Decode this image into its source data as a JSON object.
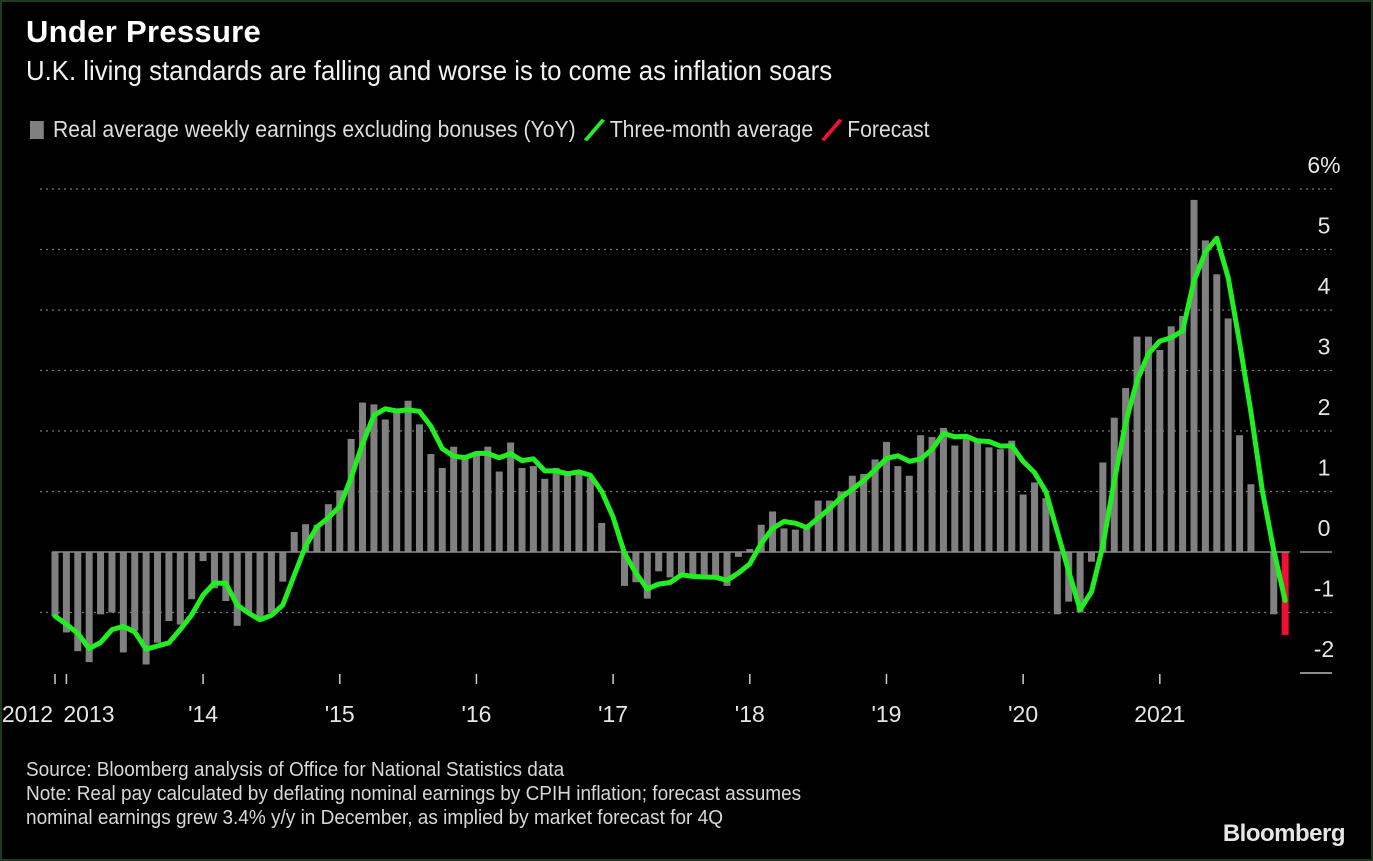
{
  "chart_data": {
    "type": "bar",
    "title": "Under Pressure",
    "subtitle": "U.K. living standards are falling and worse is to come as inflation soars",
    "legend": [
      {
        "label": "Real average weekly earnings excluding bonuses (YoY)",
        "color": "#808080"
      },
      {
        "label": "Three-month average",
        "color": "#22ee22"
      },
      {
        "label": "Forecast",
        "color": "#ee1133"
      }
    ],
    "ylabel": "%",
    "ylim": [
      -2,
      6
    ],
    "y_ticks": [
      "6%",
      "5",
      "4",
      "3",
      "2",
      "1",
      "0",
      "-1",
      "-2"
    ],
    "y_tick_values": [
      6,
      5,
      4,
      3,
      2,
      1,
      0,
      -1,
      -2
    ],
    "x_ticks": [
      {
        "label": "2012",
        "month_index": 0
      },
      {
        "label": "2013",
        "month_index": 1
      },
      {
        "label": "'14",
        "month_index": 13
      },
      {
        "label": "'15",
        "month_index": 25
      },
      {
        "label": "'16",
        "month_index": 37
      },
      {
        "label": "'17",
        "month_index": 49
      },
      {
        "label": "'18",
        "month_index": 61
      },
      {
        "label": "'19",
        "month_index": 73
      },
      {
        "label": "'20",
        "month_index": 85
      },
      {
        "label": "2021",
        "month_index": 97
      }
    ],
    "x_start": "2012-12",
    "x_end": "2021-12",
    "values": [
      -1.06,
      -1.33,
      -1.64,
      -1.82,
      -1.03,
      -1.0,
      -1.66,
      -1.3,
      -1.86,
      -1.5,
      -1.14,
      -1.2,
      -0.78,
      -0.15,
      -0.6,
      -0.81,
      -1.22,
      -1.0,
      -1.14,
      -1.0,
      -0.49,
      0.33,
      0.46,
      0.45,
      0.79,
      1.02,
      1.87,
      2.47,
      2.44,
      2.19,
      2.36,
      2.5,
      2.11,
      1.62,
      1.39,
      1.74,
      1.55,
      1.6,
      1.74,
      1.33,
      1.81,
      1.39,
      1.42,
      1.21,
      1.39,
      1.28,
      1.3,
      1.23,
      0.48,
      0.02,
      -0.56,
      -0.5,
      -0.77,
      -0.32,
      -0.42,
      -0.39,
      -0.4,
      -0.45,
      -0.4,
      -0.56,
      -0.08,
      0.05,
      0.45,
      0.67,
      0.39,
      0.37,
      0.45,
      0.85,
      0.85,
      1.0,
      1.26,
      1.29,
      1.53,
      1.82,
      1.42,
      1.26,
      1.93,
      1.9,
      2.05,
      1.76,
      1.93,
      1.82,
      1.73,
      1.7,
      1.84,
      0.95,
      1.15,
      0.89,
      -1.03,
      -0.82,
      -1.0,
      -0.16,
      1.48,
      2.22,
      2.71,
      3.56,
      3.56,
      3.34,
      3.73,
      3.9,
      5.82,
      5.15,
      4.59,
      3.86,
      1.93,
      1.12,
      0.0,
      -1.03,
      -1.37
    ],
    "forecast_from_index": 108,
    "line": {
      "name": "Three-month average",
      "method": "trailing 3-month average of values"
    }
  },
  "footer": {
    "source": "Source: Bloomberg analysis of Office for National Statistics data",
    "note1": "Note: Real pay calculated by deflating nominal earnings by CPIH inflation; forecast assumes",
    "note2": "nominal earnings grew 3.4% y/y in December, as implied by market forecast for 4Q"
  },
  "logo": "Bloomberg"
}
